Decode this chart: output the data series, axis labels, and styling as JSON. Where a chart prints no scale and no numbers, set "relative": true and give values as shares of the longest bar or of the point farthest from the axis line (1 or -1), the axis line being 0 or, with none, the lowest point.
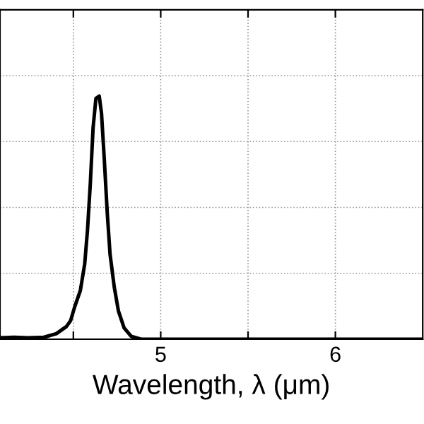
{
  "chart_data": {
    "type": "line",
    "xlabel": "Wavelength, λ (μm)",
    "relative": true,
    "grid": true,
    "marker": "none",
    "line_style": "solid",
    "xlim": [
      4.08,
      6.5
    ],
    "xticks": [
      {
        "value": 4.5,
        "label": null
      },
      5,
      {
        "value": 5.5,
        "label": null
      },
      6
    ],
    "tick_labels": "x",
    "series": [
      {
        "color": "#000000",
        "x": [
          4.081,
          4.161,
          4.242,
          4.331,
          4.403,
          4.46,
          4.484,
          4.508,
          4.54,
          4.565,
          4.581,
          4.597,
          4.613,
          4.629,
          4.648,
          4.661,
          4.677,
          4.694,
          4.71,
          4.734,
          4.758,
          4.79,
          4.831,
          4.887,
          4.968,
          6.5
        ],
        "values": [
          0.006,
          0.008,
          0.006,
          0.008,
          0.023,
          0.052,
          0.076,
          0.134,
          0.2,
          0.31,
          0.45,
          0.64,
          0.87,
          0.99,
          1,
          0.93,
          0.74,
          0.52,
          0.35,
          0.215,
          0.116,
          0.047,
          0.012,
          0,
          0,
          0
        ]
      }
    ]
  }
}
